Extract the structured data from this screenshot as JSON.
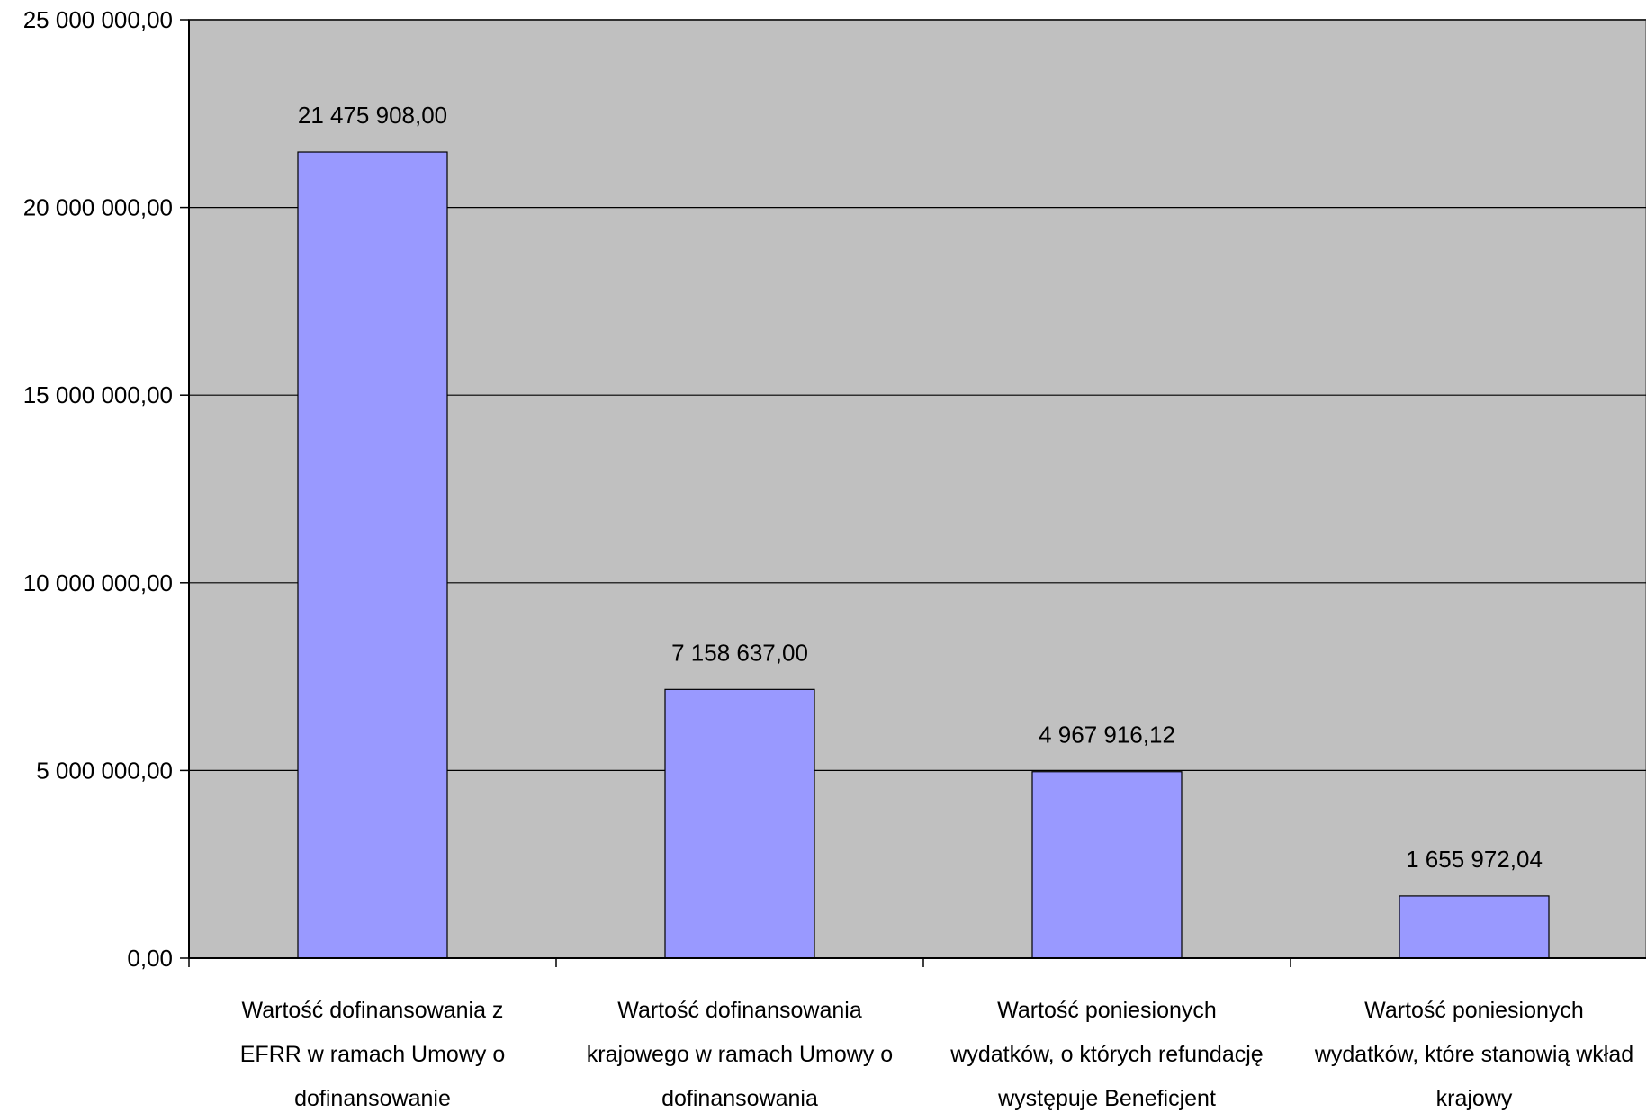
{
  "chart_data": {
    "type": "bar",
    "title": "",
    "xlabel": "",
    "ylabel": "",
    "ylim": [
      0,
      25000000
    ],
    "grid": true,
    "legend": "none",
    "y_ticks": [
      {
        "value": 0,
        "label": "0,00"
      },
      {
        "value": 5000000,
        "label": "5 000 000,00"
      },
      {
        "value": 10000000,
        "label": "10 000 000,00"
      },
      {
        "value": 15000000,
        "label": "15 000 000,00"
      },
      {
        "value": 20000000,
        "label": "20 000 000,00"
      },
      {
        "value": 25000000,
        "label": "25 000 000,00"
      }
    ],
    "categories": [
      [
        "Wartość dofinansowania z",
        "EFRR w ramach Umowy o",
        "dofinansowanie"
      ],
      [
        "Wartość dofinansowania",
        "krajowego w ramach Umowy o",
        "dofinansowania"
      ],
      [
        "Wartość poniesionych",
        "wydatków, o których refundację",
        "występuje Beneficjent"
      ],
      [
        "Wartość poniesionych",
        "wydatków, które stanowią wkład",
        "krajowy"
      ]
    ],
    "values": [
      21475908.0,
      7158637.0,
      4967916.12,
      1655972.04
    ],
    "value_labels": [
      "21 475 908,00",
      "7 158 637,00",
      "4 967 916,12",
      "1 655 972,04"
    ],
    "colors": {
      "plot_background": "#c0c0c0",
      "bar_fill": "#9999ff",
      "bar_stroke": "#000000",
      "gridline": "#000000",
      "axis": "#000000"
    }
  }
}
